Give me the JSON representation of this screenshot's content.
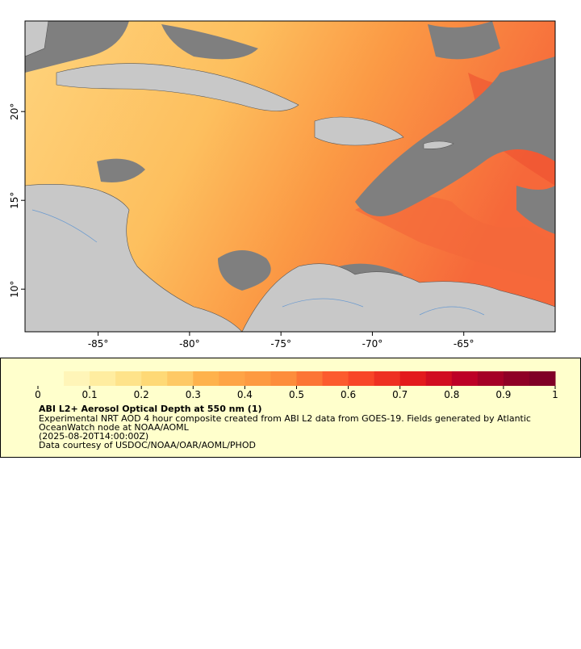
{
  "map": {
    "xlim": [
      -89,
      -60
    ],
    "ylim": [
      7.6,
      25.1
    ],
    "xticks": [
      {
        "value": -85,
        "label": "-85°"
      },
      {
        "value": -80,
        "label": "-80°"
      },
      {
        "value": -75,
        "label": "-75°"
      },
      {
        "value": -70,
        "label": "-70°"
      },
      {
        "value": -65,
        "label": "-65°"
      }
    ],
    "yticks": [
      {
        "value": 10,
        "label": "10°"
      },
      {
        "value": 15,
        "label": "15°"
      },
      {
        "value": 20,
        "label": "20°"
      }
    ]
  },
  "legend": {
    "colorbar": {
      "range": [
        0,
        1
      ],
      "ticks": [
        0,
        0.1,
        0.2,
        0.3,
        0.4,
        0.5,
        0.6,
        0.7,
        0.8,
        0.9,
        1
      ],
      "colors": [
        "#ffffcc",
        "#fff5b8",
        "#ffeda0",
        "#fee38a",
        "#fed976",
        "#fec965",
        "#feb24c",
        "#fea446",
        "#fd9a41",
        "#fd8d3c",
        "#fc7535",
        "#fc5b2e",
        "#f84628",
        "#ee3022",
        "#e31a1c",
        "#d10d20",
        "#bd0026",
        "#a50026",
        "#8f0026",
        "#800026"
      ]
    },
    "title": "ABI L2+ Aerosol Optical Depth at 550 nm (1)",
    "description": [
      "Experimental NRT AOD 4 hour composite created from ABI L2 data from GOES-19. Fields generated by Atlantic",
      "OceanWatch node at NOAA/AOML"
    ],
    "time": "(2025-08-20T14:00:00Z)",
    "credit": "Data courtesy of USDOC/NOAA/OAR/AOML/PHOD"
  }
}
